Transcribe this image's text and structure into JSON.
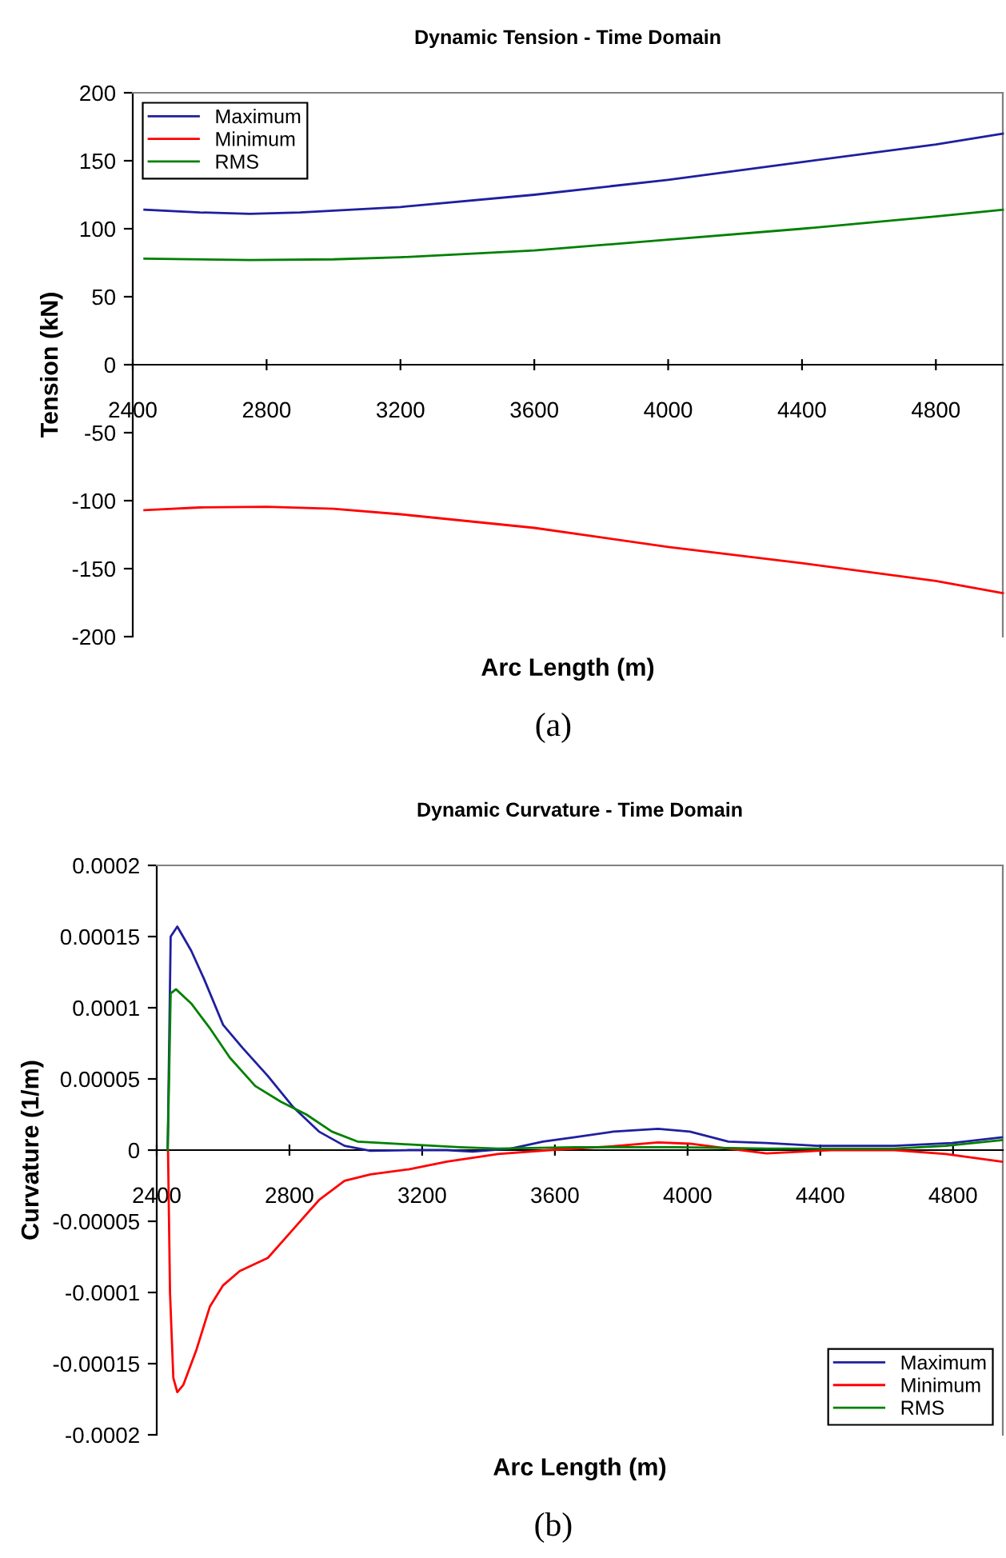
{
  "chart_data": [
    {
      "type": "line",
      "title": "Dynamic Tension - Time Domain",
      "xlabel": "Arc Length (m)",
      "ylabel": "Tension (kN)",
      "annotations": [
        "(a)"
      ],
      "xlim": [
        2400,
        5000
      ],
      "xticks": [
        2400,
        2800,
        3200,
        3600,
        4000,
        4400,
        4800
      ],
      "ylim": [
        -200,
        200
      ],
      "yticks": [
        -200,
        -150,
        -100,
        -50,
        0,
        50,
        100,
        150,
        200
      ],
      "grid": false,
      "legend": "top left",
      "series": [
        {
          "name": "Maximum",
          "color": "#1f1f9f",
          "x": [
            2435,
            2600,
            2750,
            2900,
            3200,
            3600,
            4000,
            4400,
            4800,
            5000
          ],
          "values": [
            114,
            112,
            111,
            112,
            116,
            125,
            136,
            149,
            162,
            170
          ]
        },
        {
          "name": "Minimum",
          "color": "#ff0000",
          "x": [
            2435,
            2600,
            2800,
            3000,
            3200,
            3600,
            4000,
            4400,
            4800,
            5000
          ],
          "values": [
            -107,
            -105,
            -104.5,
            -106,
            -110,
            -120,
            -134,
            -146,
            -159,
            -168
          ]
        },
        {
          "name": "RMS",
          "color": "#008000",
          "x": [
            2435,
            2750,
            3000,
            3200,
            3600,
            4000,
            4400,
            4800,
            5000
          ],
          "values": [
            78,
            77,
            77.5,
            79,
            84,
            92,
            100,
            109,
            114
          ]
        }
      ]
    },
    {
      "type": "line",
      "title": "Dynamic Curvature - Time Domain",
      "xlabel": "Arc Length (m)",
      "ylabel": "Curvature (1/m)",
      "annotations": [
        "(b)"
      ],
      "xlim": [
        2400,
        4950
      ],
      "xticks": [
        2400,
        2800,
        3200,
        3600,
        4000,
        4400,
        4800
      ],
      "ylim": [
        -0.0002,
        0.0002
      ],
      "yticks": [
        {
          "value": -0.0002,
          "label": "-0.0002"
        },
        {
          "value": -0.00015,
          "label": "-0.00015"
        },
        {
          "value": -0.0001,
          "label": "-0.0001"
        },
        {
          "value": -5e-05,
          "label": "-0.00005"
        },
        0,
        {
          "value": 5e-05,
          "label": "0.00005"
        },
        {
          "value": 0.0001,
          "label": "0.0001"
        },
        {
          "value": 0.00015,
          "label": "0.00015"
        },
        {
          "value": 0.0002,
          "label": "0.0002"
        }
      ],
      "grid": false,
      "legend": "bottom right",
      "series": [
        {
          "name": "Maximum",
          "color": "#1f1f9f",
          "x": [
            2433,
            2442,
            2462,
            2504,
            2543,
            2600,
            2658,
            2735,
            2812,
            2889,
            2966,
            3044,
            3159,
            3275,
            3352,
            3467,
            3564,
            3660,
            3776,
            3911,
            4007,
            4123,
            4238,
            4392,
            4624,
            4797,
            4947
          ],
          "values": [
            0,
            0.00015,
            0.000157,
            0.00014,
            0.00012,
            8.8e-05,
            7.2e-05,
            5.2e-05,
            3e-05,
            1.3e-05,
            3e-06,
            -5e-07,
            0,
            0,
            -1e-06,
            1e-06,
            6e-06,
            9e-06,
            1.3e-05,
            1.5e-05,
            1.3e-05,
            6e-06,
            5e-06,
            3e-06,
            3e-06,
            5e-06,
            9e-06
          ]
        },
        {
          "name": "Minimum",
          "color": "#ff0000",
          "x": [
            2434,
            2440,
            2450,
            2462,
            2480,
            2520,
            2560,
            2600,
            2650,
            2735,
            2812,
            2889,
            2966,
            3044,
            3159,
            3275,
            3429,
            3583,
            3776,
            3911,
            4007,
            4123,
            4238,
            4431,
            4624,
            4778,
            4947
          ],
          "values": [
            0,
            -0.0001,
            -0.00016,
            -0.00017,
            -0.000165,
            -0.00014,
            -0.00011,
            -9.5e-05,
            -8.5e-05,
            -7.57e-05,
            -5.54e-05,
            -3.51e-05,
            -2.16e-05,
            -1.71e-05,
            -1.35e-05,
            -8.1e-06,
            -2.7e-06,
            0,
            2.7e-06,
            5.4e-06,
            4.5e-06,
            1e-06,
            -2.3e-06,
            0,
            0,
            -2.7e-06,
            -8.1e-06
          ]
        },
        {
          "name": "RMS",
          "color": "#008000",
          "x": [
            2433,
            2442,
            2458,
            2504,
            2562,
            2620,
            2697,
            2774,
            2851,
            2928,
            3005,
            3159,
            3313,
            3429,
            3660,
            3969,
            4238,
            4624,
            4778,
            4947
          ],
          "values": [
            0,
            0.00011,
            0.000113,
            0.000103,
            8.5e-05,
            6.5e-05,
            4.5e-05,
            3.4e-05,
            2.5e-05,
            1.3e-05,
            6e-06,
            4e-06,
            2e-06,
            1e-06,
            2e-06,
            2e-06,
            1e-06,
            1e-06,
            3e-06,
            7e-06
          ]
        }
      ]
    }
  ]
}
